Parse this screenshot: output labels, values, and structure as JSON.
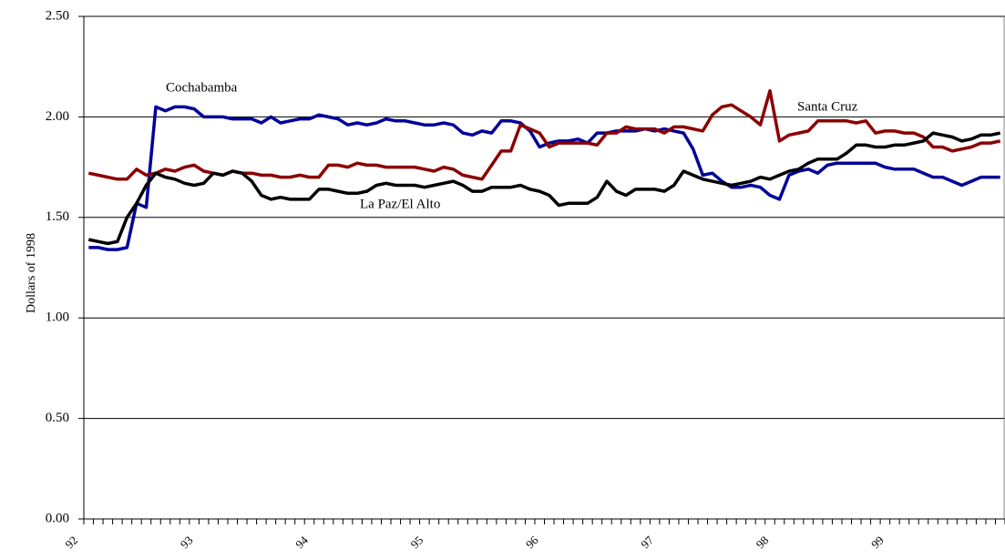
{
  "chart_data": {
    "type": "line",
    "y_label": "Dollars of 1998",
    "categories": [
      "92",
      null,
      null,
      null,
      null,
      null,
      null,
      null,
      null,
      null,
      null,
      null,
      "93",
      null,
      null,
      null,
      null,
      null,
      null,
      null,
      null,
      null,
      null,
      null,
      "94",
      null,
      null,
      null,
      null,
      null,
      null,
      null,
      null,
      null,
      null,
      null,
      "95",
      null,
      null,
      null,
      null,
      null,
      null,
      null,
      null,
      null,
      null,
      null,
      "96",
      null,
      null,
      null,
      null,
      null,
      null,
      null,
      null,
      null,
      null,
      null,
      "97",
      null,
      null,
      null,
      null,
      null,
      null,
      null,
      null,
      null,
      null,
      null,
      "98",
      null,
      null,
      null,
      null,
      null,
      null,
      null,
      null,
      null,
      null,
      null,
      "99",
      null,
      null,
      null,
      null,
      null,
      null,
      null,
      null,
      null,
      null,
      null
    ],
    "series": [
      {
        "name": "Cochabamba",
        "color": "#000099",
        "values": [
          1.35,
          1.35,
          1.34,
          1.34,
          1.35,
          1.57,
          1.55,
          2.05,
          2.03,
          2.05,
          2.05,
          2.04,
          2.0,
          2.0,
          2.0,
          1.99,
          1.99,
          1.99,
          1.97,
          2.0,
          1.97,
          1.98,
          1.99,
          1.99,
          2.01,
          2.0,
          1.99,
          1.96,
          1.97,
          1.96,
          1.97,
          1.99,
          1.98,
          1.98,
          1.97,
          1.96,
          1.96,
          1.97,
          1.96,
          1.92,
          1.91,
          1.93,
          1.92,
          1.98,
          1.98,
          1.97,
          1.93,
          1.85,
          1.87,
          1.88,
          1.88,
          1.89,
          1.87,
          1.92,
          1.92,
          1.93,
          1.93,
          1.93,
          1.94,
          1.93,
          1.94,
          1.93,
          1.92,
          1.84,
          1.71,
          1.72,
          1.68,
          1.65,
          1.65,
          1.66,
          1.65,
          1.61,
          1.59,
          1.71,
          1.73,
          1.74,
          1.72,
          1.76,
          1.77,
          1.77,
          1.77,
          1.77,
          1.77,
          1.75,
          1.74,
          1.74,
          1.74,
          1.72,
          1.7,
          1.7,
          1.68,
          1.66,
          1.68,
          1.7,
          1.7,
          1.7
        ]
      },
      {
        "name": "Santa Cruz",
        "color": "#8b0000",
        "values": [
          1.72,
          1.71,
          1.7,
          1.69,
          1.69,
          1.74,
          1.71,
          1.72,
          1.74,
          1.73,
          1.75,
          1.76,
          1.73,
          1.72,
          1.71,
          1.73,
          1.72,
          1.72,
          1.71,
          1.71,
          1.7,
          1.7,
          1.71,
          1.7,
          1.7,
          1.76,
          1.76,
          1.75,
          1.77,
          1.76,
          1.76,
          1.75,
          1.75,
          1.75,
          1.75,
          1.74,
          1.73,
          1.75,
          1.74,
          1.71,
          1.7,
          1.69,
          1.76,
          1.83,
          1.83,
          1.96,
          1.94,
          1.92,
          1.85,
          1.87,
          1.87,
          1.87,
          1.87,
          1.86,
          1.92,
          1.92,
          1.95,
          1.94,
          1.94,
          1.94,
          1.92,
          1.95,
          1.95,
          1.94,
          1.93,
          2.01,
          2.05,
          2.06,
          2.03,
          2.0,
          1.96,
          2.13,
          1.88,
          1.91,
          1.92,
          1.93,
          1.98,
          1.98,
          1.98,
          1.98,
          1.97,
          1.98,
          1.92,
          1.93,
          1.93,
          1.92,
          1.92,
          1.9,
          1.85,
          1.85,
          1.83,
          1.84,
          1.85,
          1.87,
          1.87,
          1.88
        ]
      },
      {
        "name": "La Paz/El Alto",
        "color": "#000000",
        "values": [
          1.39,
          1.38,
          1.37,
          1.38,
          1.5,
          1.57,
          1.66,
          1.72,
          1.7,
          1.69,
          1.67,
          1.66,
          1.67,
          1.72,
          1.71,
          1.73,
          1.72,
          1.68,
          1.61,
          1.59,
          1.6,
          1.59,
          1.59,
          1.59,
          1.64,
          1.64,
          1.63,
          1.62,
          1.62,
          1.63,
          1.66,
          1.67,
          1.66,
          1.66,
          1.66,
          1.65,
          1.66,
          1.67,
          1.68,
          1.66,
          1.63,
          1.63,
          1.65,
          1.65,
          1.65,
          1.66,
          1.64,
          1.63,
          1.61,
          1.56,
          1.57,
          1.57,
          1.57,
          1.6,
          1.68,
          1.63,
          1.61,
          1.64,
          1.64,
          1.64,
          1.63,
          1.66,
          1.73,
          1.71,
          1.69,
          1.68,
          1.67,
          1.66,
          1.67,
          1.68,
          1.7,
          1.69,
          1.71,
          1.73,
          1.74,
          1.77,
          1.79,
          1.79,
          1.79,
          1.82,
          1.86,
          1.86,
          1.85,
          1.85,
          1.86,
          1.86,
          1.87,
          1.88,
          1.92,
          1.91,
          1.9,
          1.88,
          1.89,
          1.91,
          1.91,
          1.92
        ]
      }
    ],
    "ylim": [
      0,
      2.5
    ],
    "yticks": [
      {
        "value": 0,
        "label": "0.00"
      },
      {
        "value": 0.5,
        "label": "0.50"
      },
      {
        "value": 1,
        "label": "1.00"
      },
      {
        "value": 1.5,
        "label": "1.50"
      },
      {
        "value": 2,
        "label": "2.00"
      },
      {
        "value": 2.5,
        "label": "2.50"
      }
    ],
    "grid": true
  }
}
